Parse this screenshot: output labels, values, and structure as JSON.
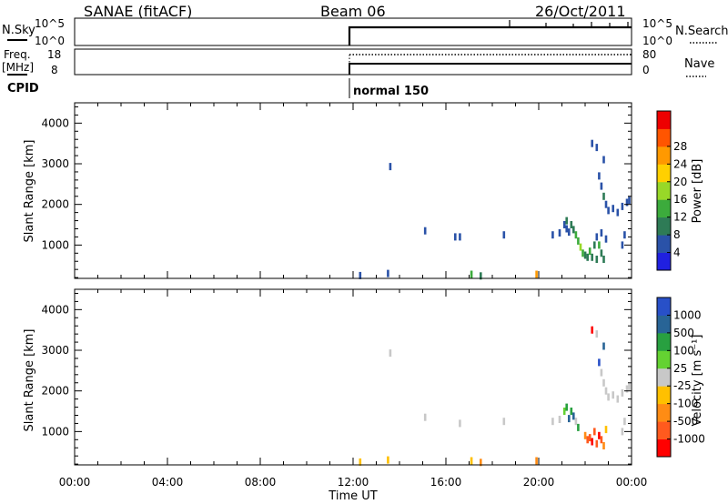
{
  "header": {
    "station": "SANAE (fitACF)",
    "beam": "Beam 06",
    "date": "26/Oct/2011"
  },
  "aux": {
    "nsky_label": "N.Sky",
    "nsky_ticks": [
      "10^5",
      "10^0"
    ],
    "nsearch_label": "N.Search",
    "nsearch_ticks": [
      "10^5",
      "10^0"
    ],
    "freq_label": "Freq.",
    "freq_unit": "[MHz]",
    "freq_ticks": [
      "18",
      "8"
    ],
    "nave_label": "Nave",
    "nave_ticks": [
      "80",
      "0"
    ],
    "cpid_label": "CPID",
    "cpid_mode": "normal 150"
  },
  "colors": {
    "power": [
      "#2020e0",
      "#2a52a8",
      "#2e7b56",
      "#3cab3c",
      "#98d828",
      "#ffd000",
      "#ff9900",
      "#ff5500",
      "#ee0000"
    ],
    "velocity": [
      "#ff0000",
      "#ff5a1e",
      "#ff8c14",
      "#ffc000",
      "#c8c8c8",
      "#64d232",
      "#28a040",
      "#286496",
      "#2850c8"
    ]
  },
  "chart_data": [
    {
      "type": "heatmap",
      "panel": "power",
      "ylabel": "Slant Range [km]",
      "xlabel": "",
      "x_ticks": [
        "00:00",
        "04:00",
        "08:00",
        "12:00",
        "16:00",
        "20:00",
        "00:00"
      ],
      "y_ticks": [
        "1000",
        "2000",
        "3000",
        "4000"
      ],
      "xlim_hours": [
        0,
        24
      ],
      "ylim_km": [
        180,
        4500
      ],
      "colorbar_label": "Power [dB]",
      "colorbar_ticks": [
        "4",
        "8",
        "12",
        "16",
        "20",
        "24",
        "28"
      ],
      "cells": [
        [
          13.6,
          2930,
          1
        ],
        [
          15.1,
          1350,
          1
        ],
        [
          16.4,
          1200,
          1
        ],
        [
          16.6,
          1200,
          1
        ],
        [
          18.5,
          1250,
          1
        ],
        [
          12.3,
          250,
          1
        ],
        [
          13.5,
          300,
          1
        ],
        [
          17.1,
          280,
          3
        ],
        [
          17.5,
          240,
          2
        ],
        [
          19.9,
          280,
          6
        ],
        [
          20.6,
          1250,
          1
        ],
        [
          20.9,
          1300,
          1
        ],
        [
          21.1,
          1500,
          1
        ],
        [
          21.2,
          1400,
          1
        ],
        [
          21.3,
          1320,
          1
        ],
        [
          21.2,
          1600,
          2
        ],
        [
          21.4,
          1500,
          2
        ],
        [
          21.5,
          1380,
          2
        ],
        [
          21.6,
          1250,
          3
        ],
        [
          21.7,
          1100,
          3
        ],
        [
          21.8,
          950,
          4
        ],
        [
          21.9,
          800,
          3
        ],
        [
          22.0,
          750,
          2
        ],
        [
          22.1,
          700,
          2
        ],
        [
          22.2,
          850,
          3
        ],
        [
          22.3,
          700,
          2
        ],
        [
          22.4,
          1000,
          2
        ],
        [
          22.5,
          650,
          2
        ],
        [
          22.5,
          1200,
          1
        ],
        [
          22.6,
          1000,
          3
        ],
        [
          22.7,
          800,
          2
        ],
        [
          22.7,
          1300,
          1
        ],
        [
          22.8,
          650,
          2
        ],
        [
          22.9,
          1150,
          1
        ],
        [
          22.3,
          3500,
          1
        ],
        [
          22.5,
          3400,
          1
        ],
        [
          22.8,
          3100,
          1
        ],
        [
          22.6,
          2700,
          1
        ],
        [
          22.7,
          2450,
          1
        ],
        [
          22.8,
          2200,
          2
        ],
        [
          22.9,
          2000,
          1
        ],
        [
          23.0,
          1850,
          1
        ],
        [
          23.2,
          1900,
          1
        ],
        [
          23.4,
          1800,
          1
        ],
        [
          23.6,
          1950,
          1
        ],
        [
          23.8,
          2050,
          1
        ],
        [
          23.9,
          2100,
          1
        ],
        [
          23.7,
          1250,
          1
        ],
        [
          23.6,
          1000,
          1
        ]
      ]
    },
    {
      "type": "heatmap",
      "panel": "velocity",
      "ylabel": "Slant Range [km]",
      "xlabel": "Time UT",
      "x_ticks": [
        "00:00",
        "04:00",
        "08:00",
        "12:00",
        "16:00",
        "20:00",
        "00:00"
      ],
      "y_ticks": [
        "1000",
        "2000",
        "3000",
        "4000"
      ],
      "xlim_hours": [
        0,
        24
      ],
      "ylim_km": [
        180,
        4500
      ],
      "colorbar_label": "Velocity [m s⁻¹]",
      "colorbar_ticks": [
        "-1000",
        "-500",
        "-100",
        "-25",
        "25",
        "100",
        "500",
        "1000"
      ],
      "cells": [
        [
          13.6,
          2930,
          4
        ],
        [
          15.1,
          1350,
          4
        ],
        [
          16.6,
          1200,
          4
        ],
        [
          18.5,
          1250,
          4
        ],
        [
          12.3,
          250,
          3
        ],
        [
          13.5,
          300,
          3
        ],
        [
          17.1,
          280,
          3
        ],
        [
          17.5,
          240,
          2
        ],
        [
          19.9,
          280,
          2
        ],
        [
          20.6,
          1250,
          4
        ],
        [
          20.9,
          1300,
          4
        ],
        [
          21.1,
          1500,
          5
        ],
        [
          21.2,
          1600,
          6
        ],
        [
          21.3,
          1320,
          7
        ],
        [
          21.4,
          1500,
          6
        ],
        [
          21.5,
          1380,
          7
        ],
        [
          21.6,
          1250,
          4
        ],
        [
          21.7,
          1100,
          6
        ],
        [
          22.0,
          900,
          2
        ],
        [
          22.1,
          800,
          1
        ],
        [
          22.2,
          850,
          1
        ],
        [
          22.3,
          750,
          0
        ],
        [
          22.4,
          1000,
          1
        ],
        [
          22.5,
          700,
          1
        ],
        [
          22.6,
          900,
          0
        ],
        [
          22.7,
          800,
          1
        ],
        [
          22.8,
          650,
          2
        ],
        [
          22.9,
          1050,
          3
        ],
        [
          22.3,
          3500,
          0
        ],
        [
          22.5,
          3400,
          4
        ],
        [
          22.8,
          3100,
          7
        ],
        [
          22.6,
          2700,
          8
        ],
        [
          22.7,
          2450,
          4
        ],
        [
          22.8,
          2200,
          4
        ],
        [
          22.9,
          2000,
          4
        ],
        [
          23.0,
          1850,
          4
        ],
        [
          23.2,
          1900,
          4
        ],
        [
          23.4,
          1800,
          4
        ],
        [
          23.6,
          1950,
          4
        ],
        [
          23.8,
          2050,
          4
        ],
        [
          23.9,
          2100,
          4
        ],
        [
          23.7,
          1250,
          4
        ],
        [
          23.6,
          1000,
          4
        ]
      ]
    }
  ]
}
